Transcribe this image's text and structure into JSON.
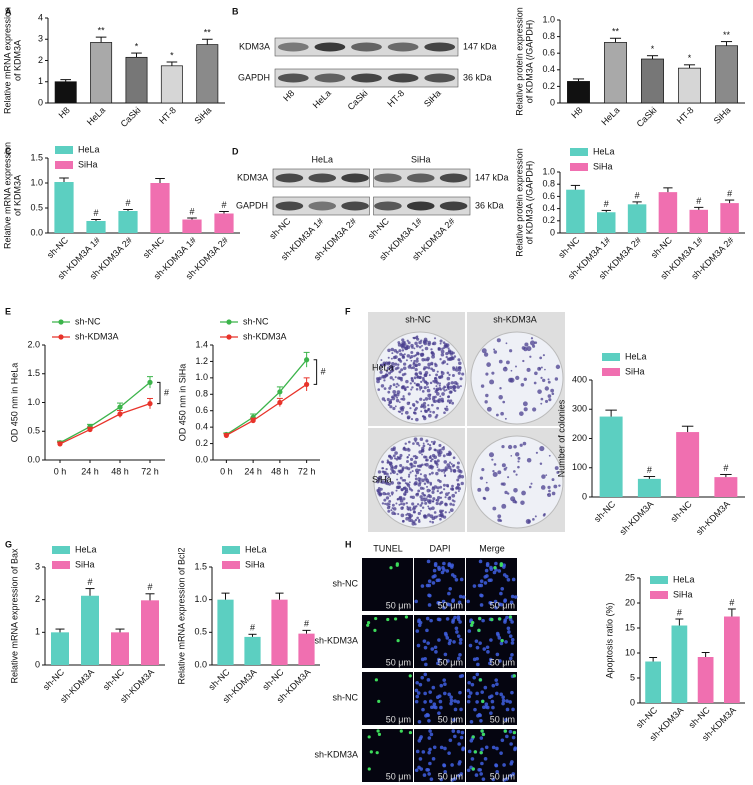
{
  "panel_labels": [
    "A",
    "B",
    "C",
    "D",
    "E",
    "F",
    "G",
    "H"
  ],
  "blots": {
    "B": {
      "lanes": [
        "H8",
        "HeLa",
        "CaSki",
        "HT-8",
        "SiHa"
      ],
      "rows": [
        {
          "protein": "KDM3A",
          "size": "147 kDa"
        },
        {
          "protein": "GAPDH",
          "size": "36 kDa"
        }
      ]
    },
    "D": {
      "groups": [
        "HeLa",
        "SiHa"
      ],
      "lanes": [
        "sh-NC",
        "sh-KDM3A 1#",
        "sh-KDM3A 2#",
        "sh-NC",
        "sh-KDM3A 1#",
        "sh-KDM3A 2#"
      ],
      "rows": [
        {
          "protein": "KDM3A",
          "size": "147 kDa"
        },
        {
          "protein": "GAPDH",
          "size": "36 kDa"
        }
      ]
    }
  },
  "colony": {
    "columns": [
      "sh-NC",
      "sh-KDM3A"
    ],
    "rows": [
      "HeLa",
      "SiHa"
    ]
  },
  "microscopy": {
    "columns": [
      "TUNEL",
      "DAPI",
      "Merge"
    ],
    "rows": [
      "sh-NC",
      "sh-KDM3A",
      "sh-NC",
      "sh-KDM3A"
    ],
    "scale_bar": "50 μm"
  },
  "chart_data": [
    {
      "type": "bar",
      "ylabel": [
        "Relative mRNA expression",
        "of KDM3A"
      ],
      "categories": [
        "H8",
        "HeLa",
        "CaSki",
        "HT-8",
        "SiHa"
      ],
      "values": [
        1.0,
        2.85,
        2.15,
        1.75,
        2.75
      ],
      "errors": [
        0.1,
        0.25,
        0.2,
        0.18,
        0.25
      ],
      "colors": [
        "#111111",
        "#a9a9a9",
        "#777777",
        "#d6d6d6",
        "#8a8a8a"
      ],
      "annotations": [
        null,
        "**",
        "*",
        "*",
        "**"
      ],
      "ylim": [
        0,
        4
      ],
      "yticks": [
        0,
        1,
        2,
        3,
        4
      ]
    },
    {
      "type": "bar",
      "ylabel": [
        "Relative protein expression",
        "of KDM3A (/GAPDH)"
      ],
      "categories": [
        "H8",
        "HeLa",
        "CaSki",
        "HT-8",
        "SiHa"
      ],
      "values": [
        0.26,
        0.73,
        0.53,
        0.42,
        0.69
      ],
      "errors": [
        0.03,
        0.05,
        0.04,
        0.04,
        0.05
      ],
      "colors": [
        "#111111",
        "#a9a9a9",
        "#777777",
        "#d6d6d6",
        "#8a8a8a"
      ],
      "annotations": [
        null,
        "**",
        "*",
        "*",
        "**"
      ],
      "ylim": [
        0,
        1
      ],
      "yticks": [
        0,
        0.2,
        0.4,
        0.6,
        0.8,
        {
          "value": 1,
          "label": "1.0"
        }
      ]
    },
    {
      "type": "bar",
      "ylabel": [
        "Relative mRNA expression",
        "of KDM3A"
      ],
      "categories": [
        "sh-NC",
        "sh-KDM3A 1#",
        "sh-KDM3A 2#",
        "sh-NC",
        "sh-KDM3A 1#",
        "sh-KDM3A 2#"
      ],
      "series": [
        {
          "name": "HeLa",
          "color": "#5ccfc1",
          "values": [
            1.02,
            0.24,
            0.44,
            null,
            null,
            null
          ],
          "errors": [
            0.08,
            0.03,
            0.03,
            null,
            null,
            null
          ]
        },
        {
          "name": "SiHa",
          "color": "#f06fb0",
          "values": [
            null,
            null,
            null,
            1.0,
            0.27,
            0.39
          ],
          "errors": [
            null,
            null,
            null,
            0.09,
            0.03,
            0.04
          ]
        }
      ],
      "annotations": [
        null,
        "#",
        "#",
        null,
        "#",
        "#"
      ],
      "ylim": [
        0,
        1.5
      ],
      "yticks": [
        {
          "value": 0,
          "label": "0.0"
        },
        0.5,
        {
          "value": 1,
          "label": "1.0"
        },
        1.5
      ]
    },
    {
      "type": "bar",
      "ylabel": [
        "Relative protein expression",
        "of KDM3A (/GAPDH)"
      ],
      "categories": [
        "sh-NC",
        "sh-KDM3A 1#",
        "sh-KDM3A 2#",
        "sh-NC",
        "sh-KDM3A 1#",
        "sh-KDM3A 2#"
      ],
      "series": [
        {
          "name": "HeLa",
          "color": "#5ccfc1",
          "values": [
            0.71,
            0.34,
            0.47,
            null,
            null,
            null
          ],
          "errors": [
            0.07,
            0.03,
            0.04,
            null,
            null,
            null
          ]
        },
        {
          "name": "SiHa",
          "color": "#f06fb0",
          "values": [
            null,
            null,
            null,
            0.67,
            0.38,
            0.49
          ],
          "errors": [
            null,
            null,
            null,
            0.07,
            0.04,
            0.05
          ]
        }
      ],
      "annotations": [
        null,
        "#",
        "#",
        null,
        "#",
        "#"
      ],
      "ylim": [
        0,
        1
      ],
      "yticks": [
        0,
        0.2,
        0.4,
        0.6,
        0.8,
        {
          "value": 1,
          "label": "1.0"
        }
      ]
    },
    {
      "type": "line",
      "ylabel": [
        "OD 450 nm in HeLa"
      ],
      "categories": [
        "0 h",
        "24 h",
        "48 h",
        "72 h"
      ],
      "series": [
        {
          "name": "sh-NC",
          "color": "#3cb44b",
          "values": [
            0.3,
            0.58,
            0.92,
            1.35
          ],
          "errors": [
            0.03,
            0.04,
            0.07,
            0.1
          ]
        },
        {
          "name": "sh-KDM3A",
          "color": "#e8332a",
          "values": [
            0.28,
            0.53,
            0.8,
            0.98
          ],
          "errors": [
            0.03,
            0.04,
            0.06,
            0.09
          ]
        }
      ],
      "annotation": "#",
      "ylim": [
        0,
        2
      ],
      "yticks": [
        {
          "value": 0,
          "label": "0.0"
        },
        0.5,
        {
          "value": 1,
          "label": "1.0"
        },
        1.5,
        {
          "value": 2,
          "label": "2.0"
        }
      ]
    },
    {
      "type": "line",
      "ylabel": [
        "OD 450 nm in SiHa"
      ],
      "categories": [
        "0 h",
        "24 h",
        "48 h",
        "72 h"
      ],
      "series": [
        {
          "name": "sh-NC",
          "color": "#3cb44b",
          "values": [
            0.31,
            0.52,
            0.83,
            1.22
          ],
          "errors": [
            0.02,
            0.04,
            0.06,
            0.09
          ]
        },
        {
          "name": "sh-KDM3A",
          "color": "#e8332a",
          "values": [
            0.3,
            0.48,
            0.7,
            0.92
          ],
          "errors": [
            0.02,
            0.03,
            0.05,
            0.08
          ]
        }
      ],
      "annotation": "#",
      "ylim": [
        0,
        1.4
      ],
      "yticks": [
        {
          "value": 0,
          "label": "0.0"
        },
        0.2,
        0.4,
        0.6,
        0.8,
        {
          "value": 1,
          "label": "1.0"
        },
        1.2,
        1.4
      ]
    },
    {
      "type": "bar",
      "ylabel": [
        "Number of colonies"
      ],
      "categories": [
        "sh-NC",
        "sh-KDM3A",
        "sh-NC",
        "sh-KDM3A"
      ],
      "series": [
        {
          "name": "HeLa",
          "color": "#5ccfc1",
          "values": [
            275,
            62,
            null,
            null
          ],
          "errors": [
            22,
            8,
            null,
            null
          ]
        },
        {
          "name": "SiHa",
          "color": "#f06fb0",
          "values": [
            null,
            null,
            222,
            68
          ],
          "errors": [
            null,
            null,
            20,
            9
          ]
        }
      ],
      "annotations": [
        null,
        "#",
        null,
        "#"
      ],
      "ylim": [
        0,
        400
      ],
      "yticks": [
        0,
        100,
        200,
        300,
        400
      ]
    },
    {
      "type": "bar",
      "ylabel": [
        "Relative mRNA expression of Bax"
      ],
      "categories": [
        "sh-NC",
        "sh-KDM3A",
        "sh-NC",
        "sh-KDM3A"
      ],
      "series": [
        {
          "name": "HeLa",
          "color": "#5ccfc1",
          "values": [
            1.0,
            2.12,
            null,
            null
          ],
          "errors": [
            0.1,
            0.22,
            null,
            null
          ]
        },
        {
          "name": "SiHa",
          "color": "#f06fb0",
          "values": [
            null,
            null,
            1.0,
            1.98
          ],
          "errors": [
            null,
            null,
            0.1,
            0.2
          ]
        }
      ],
      "annotations": [
        null,
        "#",
        null,
        "#"
      ],
      "ylim": [
        0,
        3
      ],
      "yticks": [
        0,
        1,
        2,
        3
      ]
    },
    {
      "type": "bar",
      "ylabel": [
        "Relative mRNA expression of Bcl2"
      ],
      "categories": [
        "sh-NC",
        "sh-KDM3A",
        "sh-NC",
        "sh-KDM3A"
      ],
      "series": [
        {
          "name": "HeLa",
          "color": "#5ccfc1",
          "values": [
            1.0,
            0.43,
            null,
            null
          ],
          "errors": [
            0.1,
            0.04,
            null,
            null
          ]
        },
        {
          "name": "SiHa",
          "color": "#f06fb0",
          "values": [
            null,
            null,
            1.0,
            0.48
          ],
          "errors": [
            null,
            null,
            0.1,
            0.05
          ]
        }
      ],
      "annotations": [
        null,
        "#",
        null,
        "#"
      ],
      "ylim": [
        0,
        1.5
      ],
      "yticks": [
        {
          "value": 0,
          "label": "0.0"
        },
        0.5,
        {
          "value": 1,
          "label": "1.0"
        },
        1.5
      ]
    },
    {
      "type": "bar",
      "ylabel": [
        "Apoptosis ratio (%)"
      ],
      "categories": [
        "sh-NC",
        "sh-KDM3A",
        "sh-NC",
        "sh-KDM3A"
      ],
      "series": [
        {
          "name": "HeLa",
          "color": "#5ccfc1",
          "values": [
            8.3,
            15.5,
            null,
            null
          ],
          "errors": [
            0.8,
            1.3,
            null,
            null
          ]
        },
        {
          "name": "SiHa",
          "color": "#f06fb0",
          "values": [
            null,
            null,
            9.2,
            17.3
          ],
          "errors": [
            null,
            null,
            0.9,
            1.5
          ]
        }
      ],
      "annotations": [
        null,
        "#",
        null,
        "#"
      ],
      "ylim": [
        0,
        25
      ],
      "yticks": [
        0,
        5,
        10,
        15,
        20,
        25
      ]
    }
  ]
}
